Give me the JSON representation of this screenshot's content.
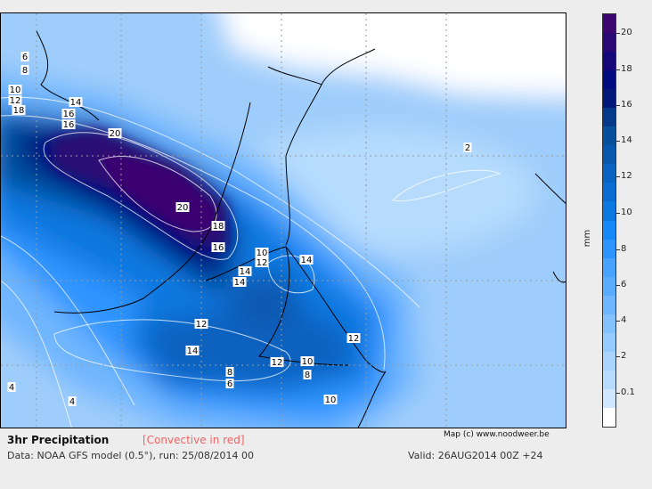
{
  "title": "3hr Precipitation",
  "convective_note": "[Convective in red]",
  "credit": "Map (c) www.noodweer.be",
  "data_line": "Data: NOAA GFS model (0.5°), run: 25/08/2014 00",
  "valid_line": "Valid: 26AUG2014 00Z +24",
  "colorbar": {
    "unit": "mm",
    "tick_labels": [
      "20",
      "18",
      "16",
      "14",
      "12",
      "10",
      "8",
      "6",
      "4",
      "2",
      "0.1"
    ],
    "colors": [
      "#3c0670",
      "#2a0874",
      "#16087a",
      "#020a80",
      "#04187a",
      "#053a88",
      "#06509c",
      "#0858b0",
      "#0862c0",
      "#0a6cd0",
      "#0c78e0",
      "#1688f8",
      "#2e94ff",
      "#48a2ff",
      "#5aacff",
      "#6eb6ff",
      "#84c2ff",
      "#96cbff",
      "#a8d4ff",
      "#b8dcff",
      "#d0e8ff",
      "#ffffff"
    ]
  },
  "contour_labels": [
    "6",
    "8",
    "10",
    "12",
    "14",
    "16",
    "16",
    "18",
    "20",
    "20",
    "18",
    "16",
    "10",
    "12",
    "14",
    "14",
    "14",
    "12",
    "14",
    "12",
    "12",
    "10",
    "8",
    "8",
    "6",
    "10",
    "2",
    "4",
    "4"
  ]
}
